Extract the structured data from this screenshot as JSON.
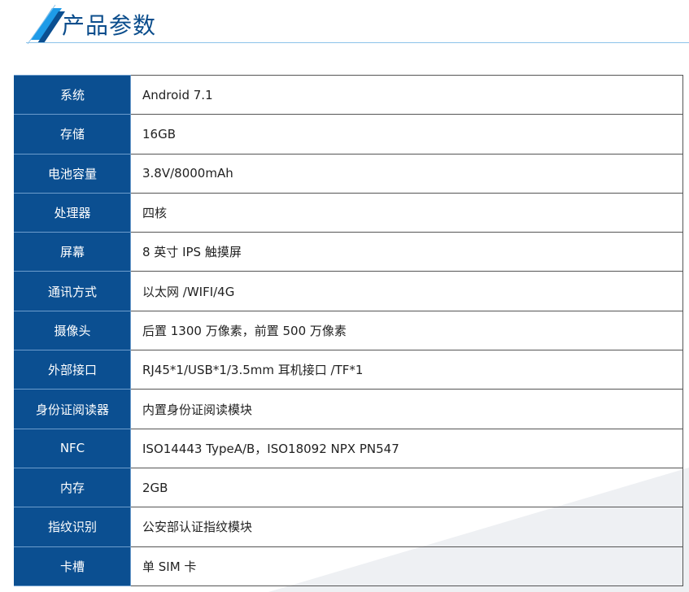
{
  "header": {
    "title": "产品参数",
    "icon": "double-slash-stripes-icon",
    "accent": "#0b4f91"
  },
  "specs": [
    {
      "label": "系统",
      "value": "Android 7.1"
    },
    {
      "label": "存储",
      "value": "16GB"
    },
    {
      "label": "电池容量",
      "value": "3.8V/8000mAh"
    },
    {
      "label": "处理器",
      "value": "四核"
    },
    {
      "label": "屏幕",
      "value": "8 英寸 IPS 触摸屏"
    },
    {
      "label": "通讯方式",
      "value": "以太网 /WIFI/4G"
    },
    {
      "label": "摄像头",
      "value": "后置 1300 万像素，前置 500 万像素"
    },
    {
      "label": "外部接口",
      "value": "RJ45*1/USB*1/3.5mm 耳机接口 /TF*1"
    },
    {
      "label": "身份证阅读器",
      "value": "内置身份证阅读模块"
    },
    {
      "label": "NFC",
      "value": "ISO14443 TypeA/B，ISO18092 NPX PN547"
    },
    {
      "label": "内存",
      "value": "2GB"
    },
    {
      "label": "指纹识别",
      "value": "公安部认证指纹模块"
    },
    {
      "label": "卡槽",
      "value": "单 SIM 卡"
    }
  ]
}
